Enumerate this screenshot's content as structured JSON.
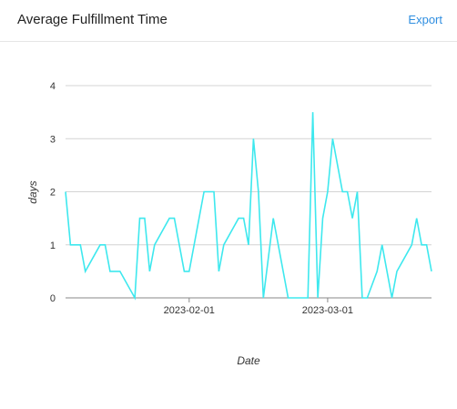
{
  "header": {
    "title": "Average Fulfillment Time",
    "export_label": "Export"
  },
  "colors": {
    "series": "#3ee8ee",
    "grid": "#d4d4d4",
    "axis": "#888888",
    "link": "#2f8ee0"
  },
  "chart_data": {
    "type": "line",
    "title": "Average Fulfillment Time",
    "xlabel": "Date",
    "ylabel": "days",
    "x_range": [
      "2023-01-07",
      "2023-03-22"
    ],
    "ylim": [
      0,
      4
    ],
    "y_ticks": [
      0,
      1,
      2,
      3,
      4
    ],
    "x_ticks": [
      "2023-02-01",
      "2023-03-01"
    ],
    "grid": true,
    "series": [
      {
        "points": [
          [
            "2023-01-07",
            2
          ],
          [
            "2023-01-08",
            1
          ],
          [
            "2023-01-10",
            1
          ],
          [
            "2023-01-11",
            0.5
          ],
          [
            "2023-01-14",
            1
          ],
          [
            "2023-01-15",
            1
          ],
          [
            "2023-01-16",
            0.5
          ],
          [
            "2023-01-18",
            0.5
          ],
          [
            "2023-01-21",
            0
          ],
          [
            "2023-01-22",
            1.5
          ],
          [
            "2023-01-23",
            1.5
          ],
          [
            "2023-01-24",
            0.5
          ],
          [
            "2023-01-25",
            1
          ],
          [
            "2023-01-28",
            1.5
          ],
          [
            "2023-01-29",
            1.5
          ],
          [
            "2023-01-31",
            0.5
          ],
          [
            "2023-02-01",
            0.5
          ],
          [
            "2023-02-04",
            2
          ],
          [
            "2023-02-06",
            2
          ],
          [
            "2023-02-07",
            0.5
          ],
          [
            "2023-02-08",
            1
          ],
          [
            "2023-02-11",
            1.5
          ],
          [
            "2023-02-12",
            1.5
          ],
          [
            "2023-02-13",
            1
          ],
          [
            "2023-02-14",
            3
          ],
          [
            "2023-02-15",
            2
          ],
          [
            "2023-02-16",
            0
          ],
          [
            "2023-02-18",
            1.5
          ],
          [
            "2023-02-21",
            0
          ],
          [
            "2023-02-25",
            0
          ],
          [
            "2023-02-26",
            3.5
          ],
          [
            "2023-02-27",
            0
          ],
          [
            "2023-02-28",
            1.5
          ],
          [
            "2023-03-01",
            2
          ],
          [
            "2023-03-02",
            3
          ],
          [
            "2023-03-04",
            2
          ],
          [
            "2023-03-05",
            2
          ],
          [
            "2023-03-06",
            1.5
          ],
          [
            "2023-03-07",
            2
          ],
          [
            "2023-03-08",
            0
          ],
          [
            "2023-03-09",
            0
          ],
          [
            "2023-03-11",
            0.5
          ],
          [
            "2023-03-12",
            1
          ],
          [
            "2023-03-14",
            0
          ],
          [
            "2023-03-15",
            0.5
          ],
          [
            "2023-03-18",
            1
          ],
          [
            "2023-03-19",
            1.5
          ],
          [
            "2023-03-20",
            1
          ],
          [
            "2023-03-21",
            1
          ],
          [
            "2023-03-22",
            0.5
          ]
        ]
      }
    ]
  }
}
